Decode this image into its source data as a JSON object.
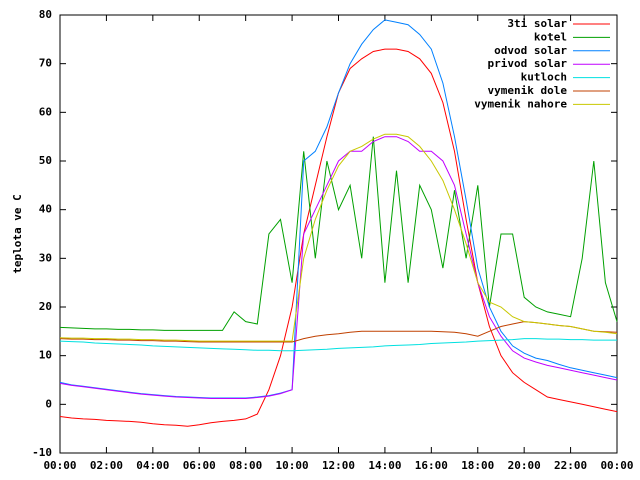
{
  "chart_data": {
    "type": "line",
    "y_label": "teplota ve C",
    "x": [
      0,
      0.5,
      1,
      1.5,
      2,
      2.5,
      3,
      3.5,
      4,
      4.5,
      5,
      5.5,
      6,
      6.5,
      7,
      7.5,
      8,
      8.5,
      9,
      9.5,
      10,
      10.5,
      11,
      11.5,
      12,
      12.5,
      13,
      13.5,
      14,
      14.5,
      15,
      15.5,
      16,
      16.5,
      17,
      17.5,
      18,
      18.5,
      19,
      19.5,
      20,
      20.5,
      21,
      21.5,
      22,
      22.5,
      23,
      23.5,
      24
    ],
    "series": [
      {
        "name": "3ti solar",
        "color": "#ff0000",
        "values": [
          -2.5,
          -2.8,
          -3,
          -3.1,
          -3.3,
          -3.4,
          -3.5,
          -3.7,
          -4,
          -4.2,
          -4.3,
          -4.5,
          -4.2,
          -3.8,
          -3.5,
          -3.3,
          -3,
          -2,
          3,
          10,
          20,
          35,
          45,
          55,
          64,
          69,
          71,
          72.5,
          73,
          73,
          72.5,
          71,
          68,
          62,
          52,
          38,
          25,
          16,
          10,
          6.5,
          4.5,
          3,
          1.5,
          1,
          0.5,
          0,
          -0.5,
          -1,
          -1.5
        ]
      },
      {
        "name": "kotel",
        "color": "#00a000",
        "values": [
          15.8,
          15.7,
          15.6,
          15.5,
          15.5,
          15.4,
          15.4,
          15.3,
          15.3,
          15.2,
          15.2,
          15.2,
          15.2,
          15.2,
          15.2,
          19,
          17,
          16.5,
          35,
          38,
          25,
          52,
          30,
          50,
          40,
          45,
          30,
          55,
          25,
          48,
          25,
          45,
          40,
          28,
          44,
          30,
          45,
          20,
          35,
          35,
          22,
          20,
          19,
          18.5,
          18,
          30,
          50,
          25,
          17
        ]
      },
      {
        "name": "odvod solar",
        "color": "#0080ff",
        "values": [
          4.5,
          4,
          3.7,
          3.4,
          3.1,
          2.8,
          2.5,
          2.2,
          2,
          1.8,
          1.6,
          1.5,
          1.4,
          1.3,
          1.3,
          1.3,
          1.3,
          1.5,
          1.8,
          2.3,
          3,
          50,
          52,
          57,
          64,
          70,
          74,
          77,
          79,
          78.5,
          78,
          76,
          73,
          66,
          55,
          42,
          28,
          20,
          15,
          12,
          10.5,
          9.5,
          9,
          8.2,
          7.5,
          7,
          6.5,
          6,
          5.5
        ]
      },
      {
        "name": "privod solar",
        "color": "#c000ff",
        "values": [
          4.3,
          3.9,
          3.6,
          3.3,
          3,
          2.7,
          2.4,
          2.1,
          1.9,
          1.7,
          1.5,
          1.4,
          1.3,
          1.2,
          1.2,
          1.2,
          1.2,
          1.4,
          1.7,
          2.2,
          3,
          35,
          40,
          45,
          50,
          52,
          52,
          54,
          55,
          55,
          54,
          52,
          52,
          50,
          45,
          35,
          25,
          18,
          14,
          11,
          9.5,
          8.7,
          8,
          7.5,
          7,
          6.5,
          6,
          5.5,
          5
        ]
      },
      {
        "name": "kutloch",
        "color": "#00e0e0",
        "values": [
          13,
          12.9,
          12.8,
          12.6,
          12.5,
          12.4,
          12.3,
          12.2,
          12,
          11.9,
          11.8,
          11.7,
          11.6,
          11.5,
          11.4,
          11.3,
          11.2,
          11.1,
          11.1,
          11,
          11,
          11.1,
          11.2,
          11.3,
          11.5,
          11.6,
          11.7,
          11.8,
          12,
          12.1,
          12.2,
          12.3,
          12.5,
          12.6,
          12.7,
          12.8,
          13,
          13.1,
          13.2,
          13.3,
          13.5,
          13.5,
          13.4,
          13.4,
          13.3,
          13.3,
          13.2,
          13.2,
          13.2
        ]
      },
      {
        "name": "vymenik dole",
        "color": "#c04000",
        "values": [
          13.5,
          13.4,
          13.4,
          13.3,
          13.3,
          13.2,
          13.2,
          13.1,
          13.1,
          13,
          13,
          12.9,
          12.8,
          12.8,
          12.8,
          12.8,
          12.8,
          12.8,
          12.8,
          12.8,
          12.8,
          13.5,
          14,
          14.3,
          14.5,
          14.8,
          15,
          15,
          15,
          15,
          15,
          15,
          15,
          14.9,
          14.8,
          14.5,
          14,
          15,
          16,
          16.5,
          17,
          16.8,
          16.5,
          16.2,
          16,
          15.5,
          15,
          14.9,
          14.8
        ]
      },
      {
        "name": "vymenik nahore",
        "color": "#c8c800",
        "values": [
          13.7,
          13.6,
          13.6,
          13.5,
          13.5,
          13.4,
          13.4,
          13.3,
          13.3,
          13.2,
          13.2,
          13.1,
          13,
          13,
          13,
          13,
          13,
          13,
          13,
          13,
          13,
          30,
          38,
          44,
          49,
          52,
          53,
          54.5,
          55.5,
          55.5,
          55,
          53,
          50,
          46,
          40,
          33,
          25,
          21,
          20,
          18,
          17,
          16.8,
          16.5,
          16.2,
          16,
          15.5,
          15,
          14.8,
          14.5
        ]
      }
    ],
    "xlim": [
      0,
      24
    ],
    "xticks": [
      {
        "value": 0,
        "label": "00:00"
      },
      {
        "value": 2,
        "label": "02:00"
      },
      {
        "value": 4,
        "label": "04:00"
      },
      {
        "value": 6,
        "label": "06:00"
      },
      {
        "value": 8,
        "label": "08:00"
      },
      {
        "value": 10,
        "label": "10:00"
      },
      {
        "value": 12,
        "label": "12:00"
      },
      {
        "value": 14,
        "label": "14:00"
      },
      {
        "value": 16,
        "label": "16:00"
      },
      {
        "value": 18,
        "label": "18:00"
      },
      {
        "value": 20,
        "label": "20:00"
      },
      {
        "value": 22,
        "label": "22:00"
      },
      {
        "value": 24,
        "label": "00:00"
      }
    ],
    "ylim": [
      -10,
      80
    ],
    "yticks": [
      -10,
      0,
      10,
      20,
      30,
      40,
      50,
      60,
      70,
      80
    ],
    "legend": "top-right"
  }
}
